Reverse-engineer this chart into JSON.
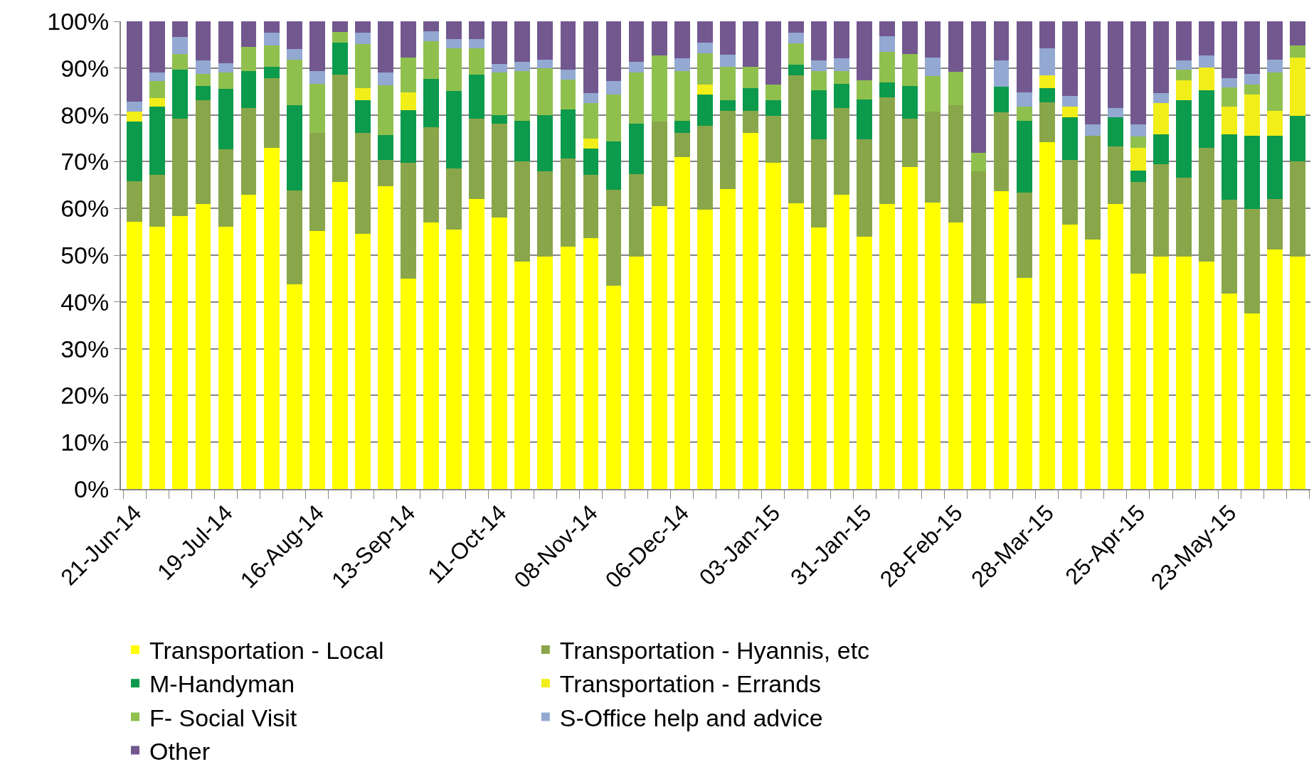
{
  "chart_data": {
    "type": "bar",
    "stacked": true,
    "categories": [
      "21-Jun-14",
      null,
      null,
      null,
      "19-Jul-14",
      null,
      null,
      null,
      "16-Aug-14",
      null,
      null,
      null,
      "13-Sep-14",
      null,
      null,
      null,
      "11-Oct-14",
      null,
      null,
      null,
      "08-Nov-14",
      null,
      null,
      null,
      "06-Dec-14",
      null,
      null,
      null,
      "03-Jan-15",
      null,
      null,
      null,
      "31-Jan-15",
      null,
      null,
      null,
      "28-Feb-15",
      null,
      null,
      null,
      "28-Mar-15",
      null,
      null,
      null,
      "25-Apr-15",
      null,
      null,
      null,
      "23-May-15",
      null,
      null,
      null
    ],
    "series": [
      {
        "name": "Transportation - Local",
        "color": "#ffff00",
        "values": [
          57.2,
          56.1,
          58.4,
          60.9,
          56.1,
          62.9,
          72.9,
          43.7,
          55.1,
          65.6,
          54.5,
          64.8,
          45.0,
          57.0,
          55.4,
          62.0,
          58.0,
          48.7,
          49.7,
          51.8,
          53.6,
          43.5,
          49.7,
          60.5,
          70.9,
          59.8,
          64.1,
          76.1,
          69.7,
          61.1,
          56.0,
          62.9,
          53.9,
          61.0,
          68.8,
          61.3,
          57.0,
          39.7,
          63.7,
          45.2,
          74.2,
          56.5,
          53.4,
          61.0,
          46.1,
          49.7,
          49.7,
          48.6,
          41.8,
          37.5,
          51.2,
          49.7
        ]
      },
      {
        "name": "Transportation - Hyannis, etc",
        "color": "#8aa64a",
        "values": [
          8.6,
          11.1,
          20.8,
          22.3,
          16.6,
          18.6,
          15.0,
          20.2,
          21.1,
          23.0,
          21.7,
          5.5,
          24.7,
          20.4,
          13.1,
          17.2,
          20.1,
          21.3,
          18.3,
          18.9,
          13.6,
          20.5,
          17.6,
          18.0,
          5.3,
          17.9,
          16.8,
          4.8,
          10.1,
          27.3,
          18.8,
          18.6,
          20.9,
          22.8,
          10.4,
          19.4,
          25.0,
          28.3,
          16.8,
          18.2,
          8.5,
          13.9,
          22.1,
          12.3,
          19.6,
          19.8,
          16.9,
          24.4,
          20.0,
          22.4,
          10.8,
          20.3
        ]
      },
      {
        "name": "M-Handyman",
        "color": "#0c9a4c",
        "values": [
          12.7,
          14.5,
          10.4,
          3.0,
          12.8,
          7.9,
          2.4,
          18.1,
          0,
          6.8,
          7.0,
          5.4,
          11.3,
          10.3,
          16.6,
          9.4,
          1.9,
          8.8,
          12.0,
          10.5,
          5.6,
          10.3,
          10.8,
          0,
          2.6,
          6.6,
          2.3,
          4.8,
          3.4,
          2.4,
          10.5,
          5.2,
          8.5,
          3.2,
          7.0,
          0,
          0,
          0,
          5.5,
          15.4,
          3.0,
          9.1,
          0,
          6.2,
          2.4,
          6.4,
          16.6,
          12.3,
          14.1,
          15.6,
          13.5,
          9.8
        ]
      },
      {
        "name": "Transportation - Errands",
        "color": "#f2ee1a",
        "values": [
          2.2,
          1.9,
          0,
          0,
          0,
          0,
          0,
          0,
          0,
          0,
          2.5,
          0,
          3.8,
          0,
          0,
          0,
          0,
          0,
          0,
          0,
          2.2,
          0,
          0,
          0,
          0,
          2.2,
          0,
          0,
          0,
          0,
          0,
          0,
          0,
          0,
          0,
          0,
          0,
          0,
          0,
          0,
          2.7,
          2.2,
          0,
          0,
          4.8,
          6.6,
          4.2,
          4.8,
          5.9,
          8.8,
          5.4,
          12.5
        ]
      },
      {
        "name": "F- Social Visit",
        "color": "#8fc04e",
        "values": [
          0,
          3.6,
          3.4,
          2.5,
          3.6,
          5.2,
          4.6,
          9.8,
          10.4,
          2.3,
          9.5,
          10.6,
          7.5,
          8.0,
          9.1,
          5.6,
          9.0,
          10.6,
          9.9,
          6.3,
          7.5,
          10.1,
          10.9,
          14.2,
          10.6,
          6.7,
          7.1,
          4.6,
          3.3,
          4.5,
          4.1,
          2.7,
          4.1,
          6.4,
          6.8,
          7.6,
          7.2,
          3.9,
          0,
          2.9,
          0,
          0,
          0,
          0,
          2.5,
          0,
          2.2,
          0,
          4.0,
          2.2,
          8.1,
          2.6
        ]
      },
      {
        "name": "S-Office help and advice",
        "color": "#93a9d2",
        "values": [
          2.2,
          1.9,
          3.6,
          2.9,
          1.9,
          0,
          2.7,
          2.2,
          2.8,
          0,
          2.4,
          2.8,
          0,
          2.1,
          2.0,
          2.0,
          1.9,
          2.0,
          1.9,
          2.1,
          2.1,
          2.8,
          2.3,
          0,
          2.7,
          2.3,
          2.5,
          0,
          0,
          2.3,
          2.2,
          2.7,
          0,
          3.4,
          0,
          3.9,
          0,
          0,
          5.6,
          3.1,
          5.8,
          2.3,
          2.4,
          2.0,
          2.5,
          2.1,
          2.0,
          2.6,
          2.1,
          2.3,
          2.8,
          0
        ]
      },
      {
        "name": "Other",
        "color": "#72588f",
        "values": [
          17.1,
          10.9,
          3.4,
          8.4,
          9.0,
          5.4,
          2.4,
          6.0,
          10.6,
          2.3,
          2.4,
          10.9,
          7.7,
          2.2,
          3.8,
          3.8,
          9.1,
          8.6,
          8.2,
          10.4,
          15.4,
          12.8,
          8.7,
          7.3,
          7.9,
          4.5,
          7.2,
          9.7,
          13.5,
          2.4,
          8.4,
          7.9,
          12.6,
          3.2,
          7.0,
          7.8,
          10.8,
          28.1,
          8.4,
          15.2,
          5.8,
          16.0,
          22.1,
          18.5,
          22.1,
          15.4,
          8.4,
          7.3,
          12.1,
          11.2,
          8.2,
          5.1
        ]
      }
    ],
    "ylim": [
      0,
      100
    ],
    "yticks": [
      {
        "value": 0,
        "label": "0%"
      },
      {
        "value": 10,
        "label": "10%"
      },
      {
        "value": 20,
        "label": "20%"
      },
      {
        "value": 30,
        "label": "30%"
      },
      {
        "value": 40,
        "label": "40%"
      },
      {
        "value": 50,
        "label": "50%"
      },
      {
        "value": 60,
        "label": "60%"
      },
      {
        "value": 70,
        "label": "70%"
      },
      {
        "value": 80,
        "label": "80%"
      },
      {
        "value": 90,
        "label": "90%"
      },
      {
        "value": 100,
        "label": "100%"
      }
    ],
    "grid": "y",
    "legend": "bottom"
  }
}
